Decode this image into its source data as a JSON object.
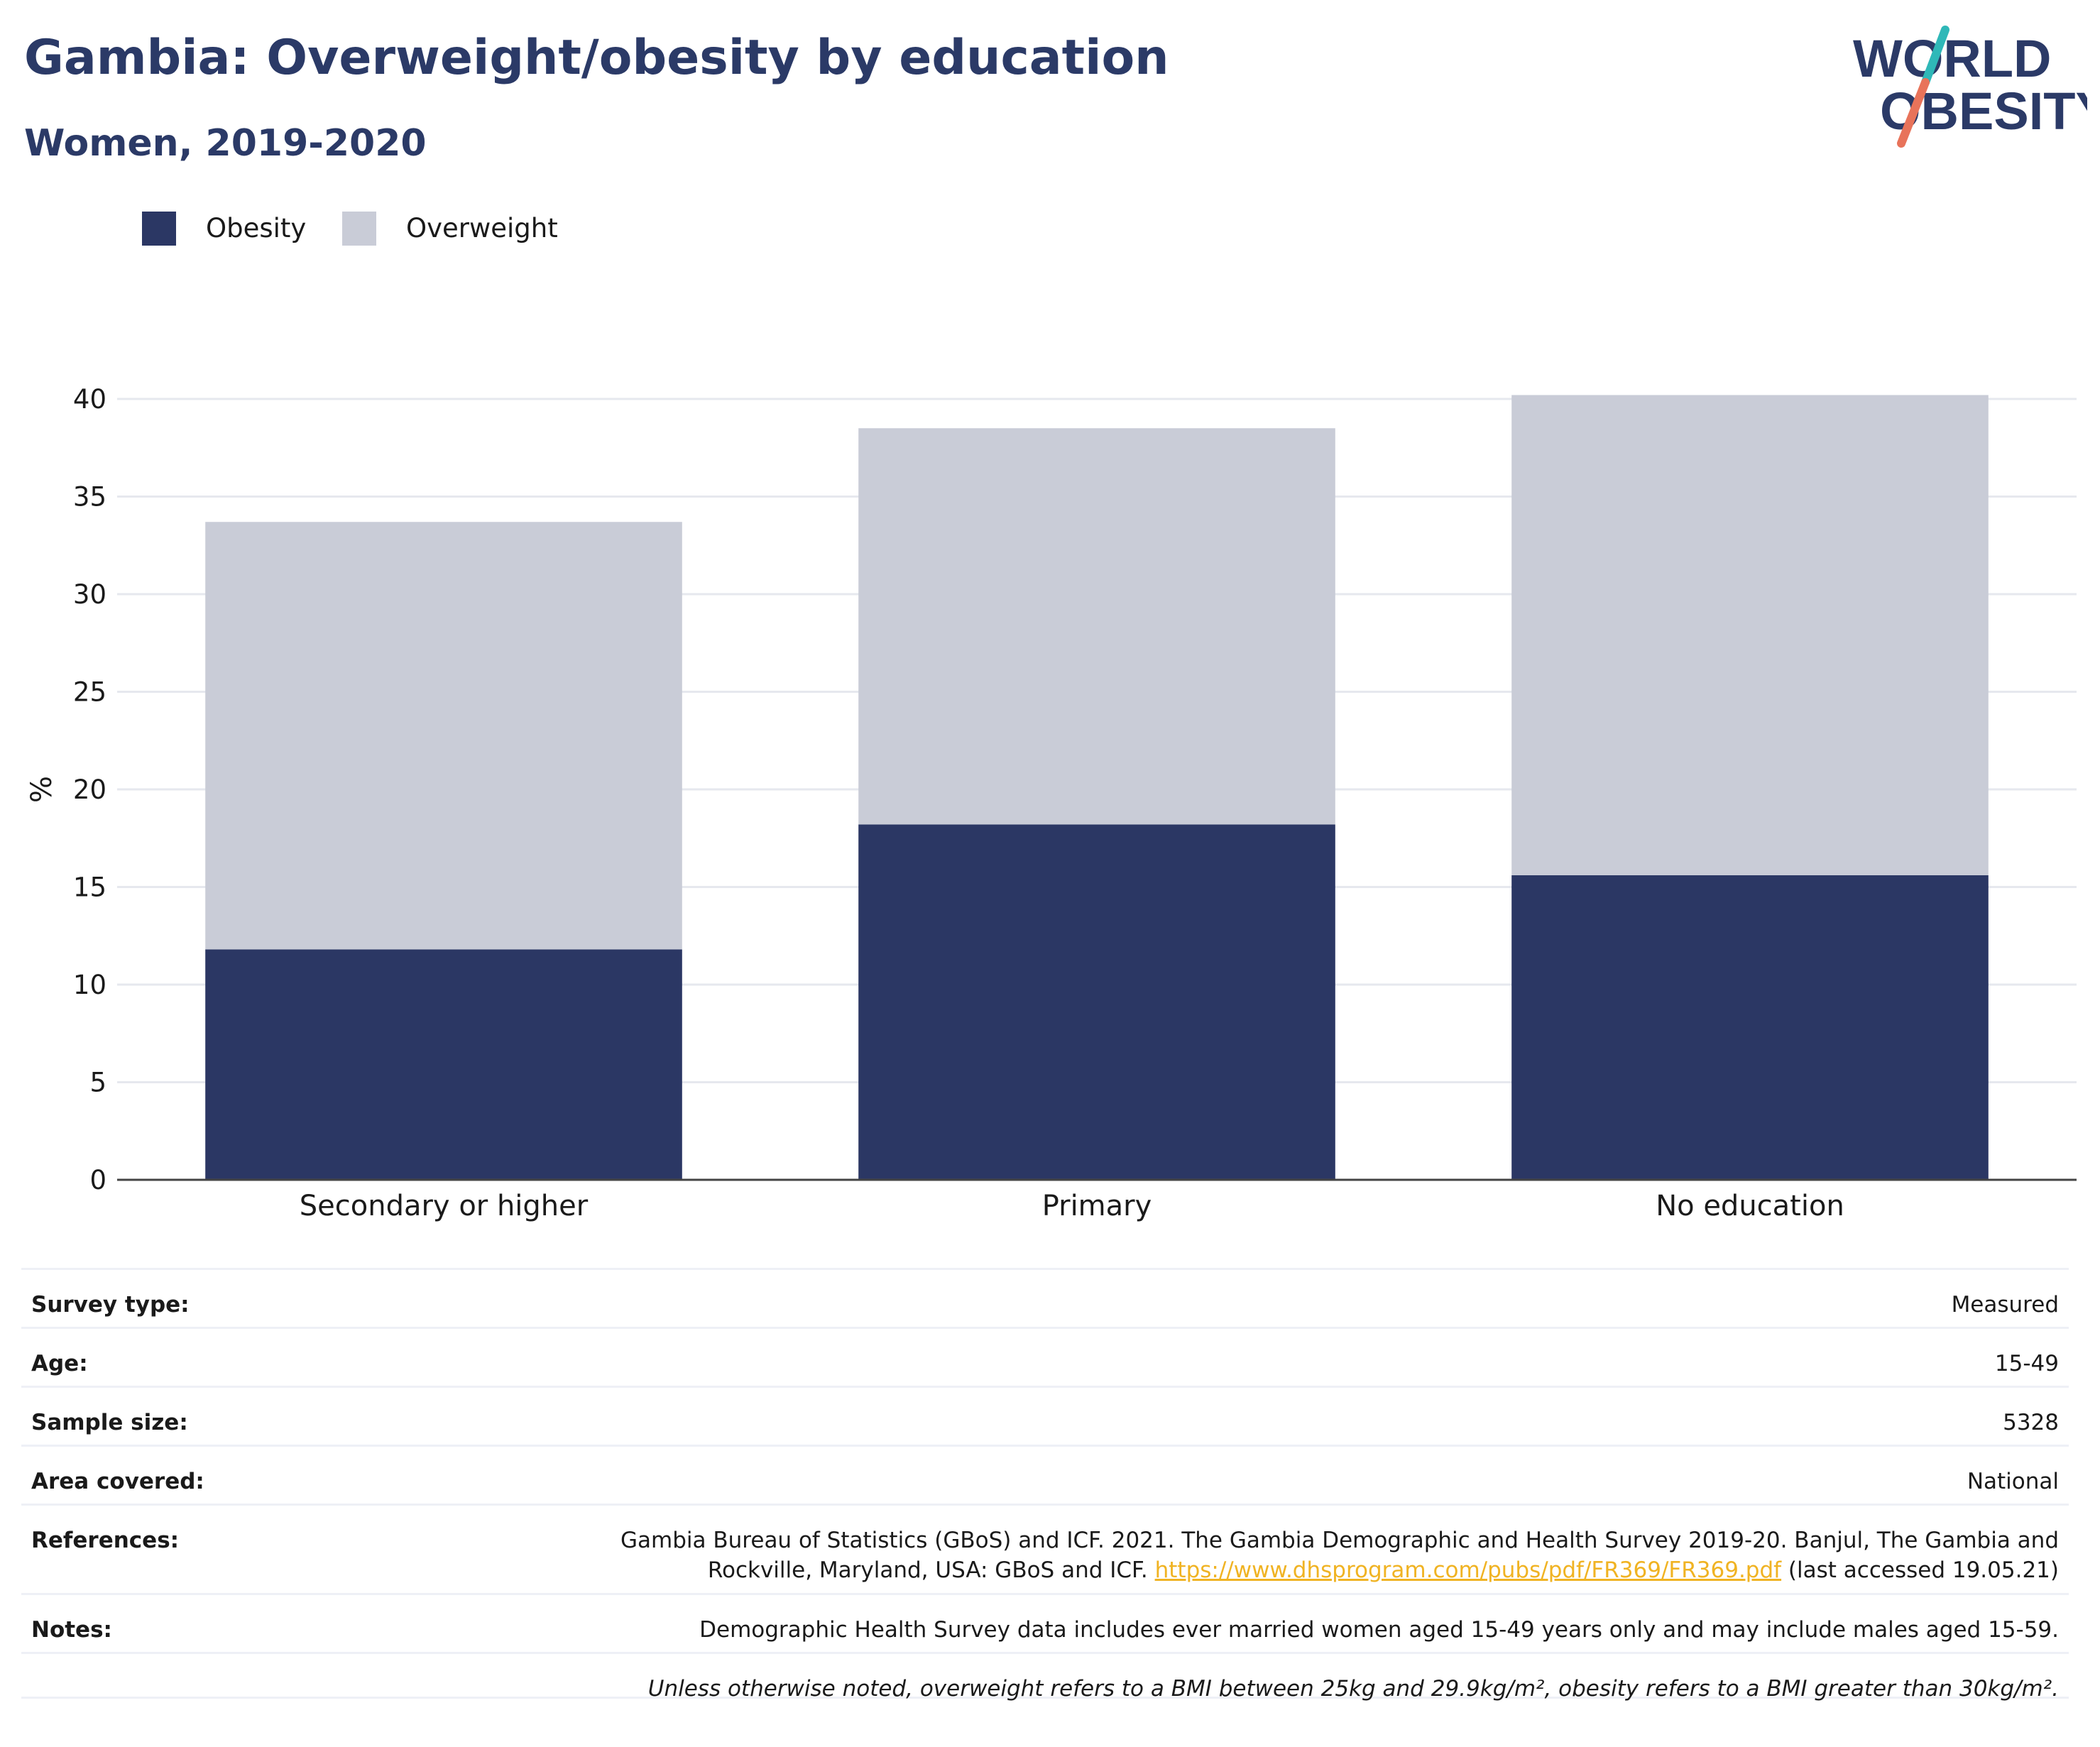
{
  "title": "Gambia: Overweight/obesity by education",
  "subtitle": "Women, 2019-2020",
  "logo": {
    "line1": "WORLD",
    "line2": "OBESITY",
    "accent_teal": "#2fb8b8",
    "accent_coral": "#e8735a",
    "text_color": "#2b3a67"
  },
  "legend": [
    {
      "label": "Obesity",
      "color": "#2b3764"
    },
    {
      "label": "Overweight",
      "color": "#c9ccd7"
    }
  ],
  "chart_data": {
    "type": "bar",
    "stacked": true,
    "categories": [
      "Secondary or higher",
      "Primary",
      "No education"
    ],
    "series": [
      {
        "name": "Obesity",
        "values": [
          11.8,
          18.2,
          15.6
        ],
        "color": "#2b3764"
      },
      {
        "name": "Overweight",
        "values": [
          21.9,
          20.3,
          24.6
        ],
        "color": "#c9ccd7"
      }
    ],
    "ylabel": "%",
    "ylim": [
      0,
      40
    ],
    "yticks": [
      0,
      5,
      10,
      15,
      20,
      25,
      30,
      35,
      40
    ],
    "grid": true
  },
  "info": {
    "survey_type": {
      "label": "Survey type:",
      "value": "Measured"
    },
    "age": {
      "label": "Age:",
      "value": "15-49"
    },
    "sample_size": {
      "label": "Sample size:",
      "value": "5328"
    },
    "area_covered": {
      "label": "Area covered:",
      "value": "National"
    },
    "references": {
      "label": "References:",
      "text_before": "Gambia Bureau of Statistics (GBoS) and ICF. 2021. The Gambia Demographic and Health Survey 2019-20. Banjul, The Gambia and Rockville, Maryland, USA: GBoS and ICF. ",
      "link": "https://www.dhsprogram.com/pubs/pdf/FR369/FR369.pdf",
      "text_after": " (last accessed 19.05.21)"
    },
    "notes": {
      "label": "Notes:",
      "value": "Demographic Health Survey data includes ever married women aged 15-49 years only and may include males aged 15-59."
    },
    "definition": "Unless otherwise noted, overweight refers to a BMI between 25kg and 29.9kg/m², obesity refers to a BMI greater than 30kg/m²."
  }
}
